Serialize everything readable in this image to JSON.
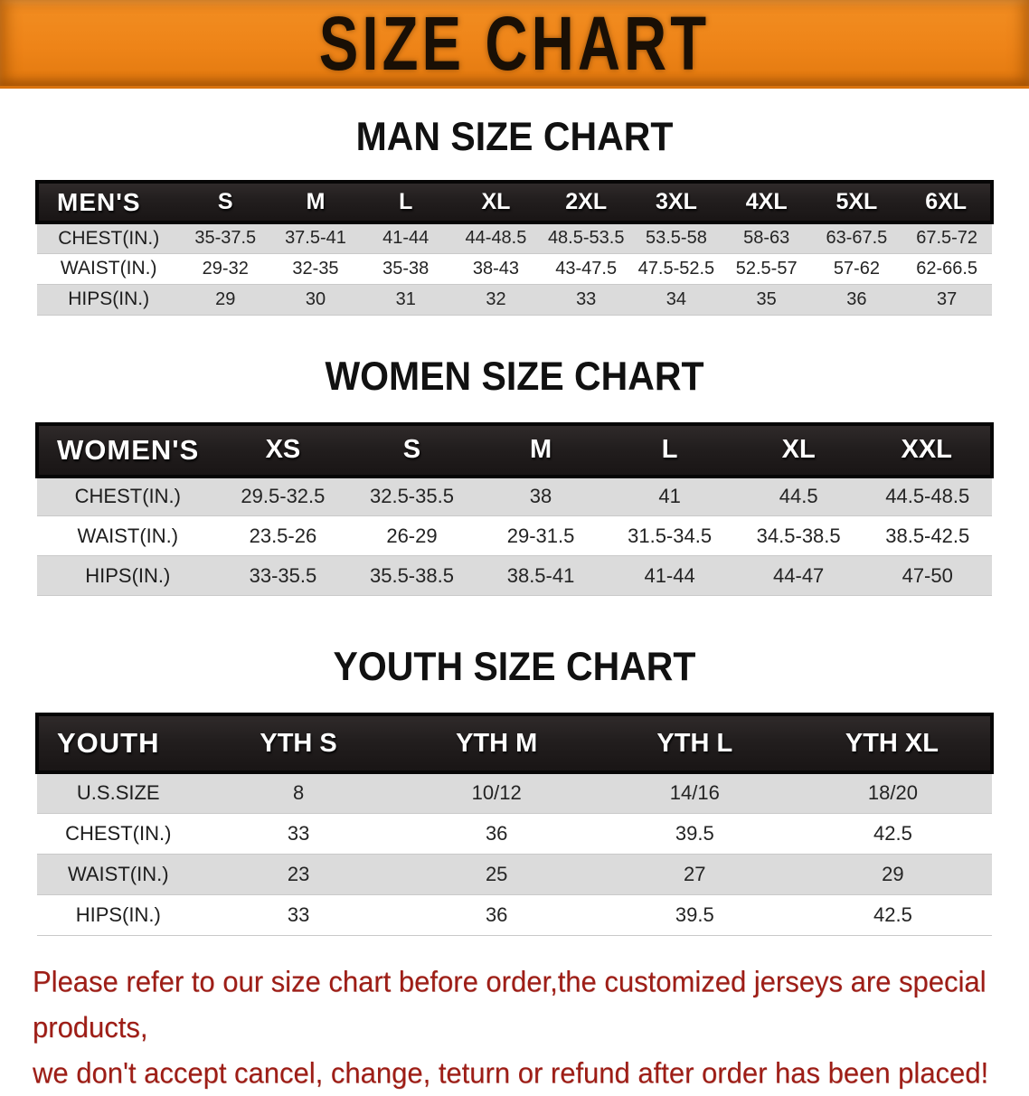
{
  "banner": {
    "title": "SIZE CHART",
    "bg_color": "#ee8418",
    "text_color": "#190f05"
  },
  "sections": [
    {
      "heading": "MAN SIZE CHART",
      "table": {
        "label": "MEN'S",
        "columns": [
          "S",
          "M",
          "L",
          "XL",
          "2XL",
          "3XL",
          "4XL",
          "5XL",
          "6XL"
        ],
        "rows": [
          {
            "label": "CHEST(IN.)",
            "values": [
              "35-37.5",
              "37.5-41",
              "41-44",
              "44-48.5",
              "48.5-53.5",
              "53.5-58",
              "58-63",
              "63-67.5",
              "67.5-72"
            ]
          },
          {
            "label": "WAIST(IN.)",
            "values": [
              "29-32",
              "32-35",
              "35-38",
              "38-43",
              "43-47.5",
              "47.5-52.5",
              "52.5-57",
              "57-62",
              "62-66.5"
            ]
          },
          {
            "label": "HIPS(IN.)",
            "values": [
              "29",
              "30",
              "31",
              "32",
              "33",
              "34",
              "35",
              "36",
              "37"
            ]
          }
        ]
      }
    },
    {
      "heading": "WOMEN SIZE CHART",
      "table": {
        "label": "WOMEN'S",
        "columns": [
          "XS",
          "S",
          "M",
          "L",
          "XL",
          "XXL"
        ],
        "rows": [
          {
            "label": "CHEST(IN.)",
            "values": [
              "29.5-32.5",
              "32.5-35.5",
              "38",
              "41",
              "44.5",
              "44.5-48.5"
            ]
          },
          {
            "label": "WAIST(IN.)",
            "values": [
              "23.5-26",
              "26-29",
              "29-31.5",
              "31.5-34.5",
              "34.5-38.5",
              "38.5-42.5"
            ]
          },
          {
            "label": "HIPS(IN.)",
            "values": [
              "33-35.5",
              "35.5-38.5",
              "38.5-41",
              "41-44",
              "44-47",
              "47-50"
            ]
          }
        ]
      }
    },
    {
      "heading": "YOUTH SIZE CHART",
      "table": {
        "label": "YOUTH",
        "columns": [
          "YTH S",
          "YTH M",
          "YTH L",
          "YTH XL"
        ],
        "rows": [
          {
            "label": "U.S.SIZE",
            "values": [
              "8",
              "10/12",
              "14/16",
              "18/20"
            ]
          },
          {
            "label": "CHEST(IN.)",
            "values": [
              "33",
              "36",
              "39.5",
              "42.5"
            ]
          },
          {
            "label": "WAIST(IN.)",
            "values": [
              "23",
              "25",
              "27",
              "29"
            ]
          },
          {
            "label": "HIPS(IN.)",
            "values": [
              "33",
              "36",
              "39.5",
              "42.5"
            ]
          }
        ]
      }
    }
  ],
  "disclaimer": {
    "line1": "Please refer to our size chart before order,the customized jerseys are special products,",
    "line2": "we don't accept cancel, change, teturn or refund after order has been placed!",
    "color": "#9e1d16"
  }
}
